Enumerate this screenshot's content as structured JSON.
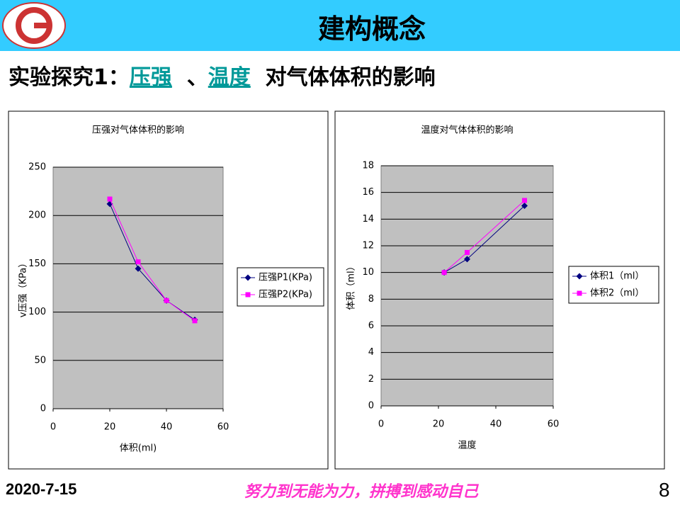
{
  "header": {
    "title": "建构概念"
  },
  "subtitle": {
    "prefix": "实验探究1：",
    "link1": "压强",
    "separator": "、",
    "link2": "温度",
    "suffix": "对气体体积的影响"
  },
  "footer": {
    "date": "2020-7-15",
    "slogan": "努力到无能为力，拼搏到感动自己",
    "page": "8"
  },
  "chart_data": [
    {
      "type": "line",
      "title": "压强对气体体积的影响",
      "x_label": "体积(ml)",
      "y_label": "v压强（KPa）",
      "xlim": [
        0,
        60
      ],
      "xticks": [
        0,
        20,
        40,
        60
      ],
      "ylim": [
        0,
        250
      ],
      "yticks": [
        0,
        50,
        100,
        150,
        200,
        250
      ],
      "grid": true,
      "legend": "right",
      "series": [
        {
          "name": "压强P1(KPa)",
          "color": "#000080",
          "marker": "diamond",
          "x": [
            20,
            30,
            40,
            50
          ],
          "values": [
            212,
            145,
            112,
            92
          ]
        },
        {
          "name": "压强P2(KPa)",
          "color": "#ff00ff",
          "marker": "square",
          "x": [
            20,
            30,
            40,
            50
          ],
          "values": [
            217,
            152,
            112,
            91
          ]
        }
      ]
    },
    {
      "type": "line",
      "title": "温度对气体体积的影响",
      "x_label": "温度",
      "y_label": "体积（ml）",
      "xlim": [
        0,
        60
      ],
      "xticks": [
        0,
        20,
        40,
        60
      ],
      "ylim": [
        0,
        18
      ],
      "yticks": [
        0,
        2,
        4,
        6,
        8,
        10,
        12,
        14,
        16,
        18
      ],
      "grid": true,
      "legend": "right",
      "series": [
        {
          "name": "体积1（ml）",
          "color": "#000080",
          "marker": "diamond",
          "x": [
            22,
            30,
            50
          ],
          "values": [
            10,
            11,
            15
          ]
        },
        {
          "name": "体积2（ml）",
          "color": "#ff00ff",
          "marker": "square",
          "x": [
            22,
            30,
            50
          ],
          "values": [
            10,
            11.5,
            15.4
          ]
        }
      ]
    }
  ]
}
